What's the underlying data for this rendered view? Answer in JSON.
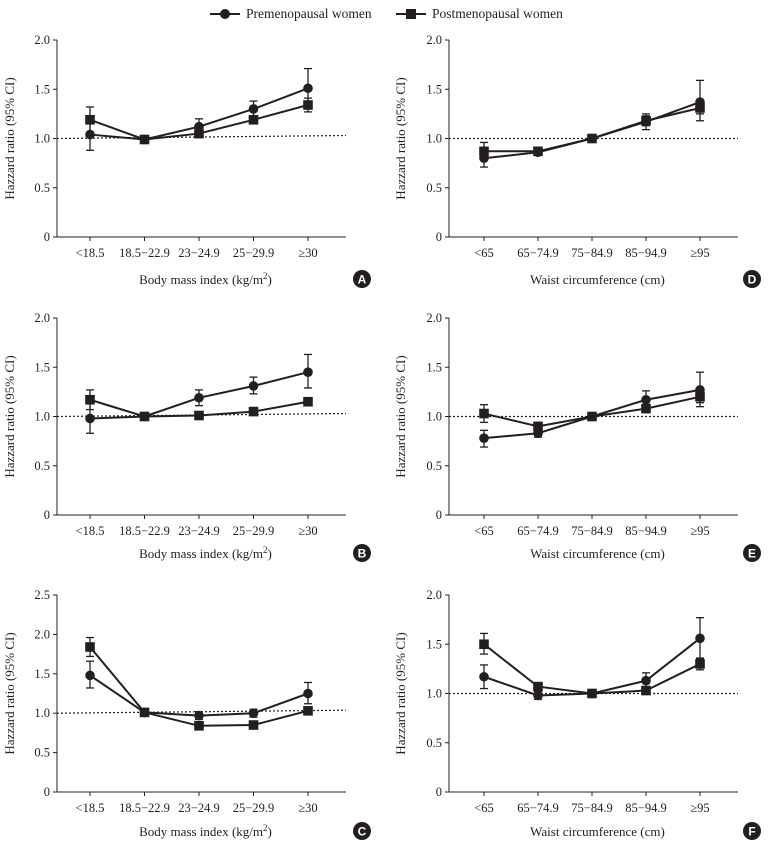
{
  "legend": {
    "premenopausal": "Premenopausal women",
    "postmenopausal": "Postmenopausal women"
  },
  "chart_data": [
    {
      "panel": "A",
      "type": "line",
      "xlabel_main": "Body mass index (kg/m",
      "xlabel_sup": "2",
      "xlabel_end": ")",
      "ylabel": "Hazzard ratio (95% CI)",
      "categories": [
        "<18.5",
        "18.5−22.9",
        "23−24.9",
        "25−29.9",
        "≥30"
      ],
      "ylim": [
        0,
        2.0
      ],
      "yticks": [
        "0",
        "0.5",
        "1.0",
        "1.5",
        "2.0"
      ],
      "reference_line": 1.0,
      "series": [
        {
          "name": "Premenopausal women",
          "marker": "circle",
          "values": [
            1.04,
            0.99,
            1.12,
            1.3,
            1.51
          ],
          "lower": [
            0.88,
            0.99,
            1.04,
            1.22,
            1.31
          ],
          "upper": [
            1.19,
            0.99,
            1.2,
            1.38,
            1.71
          ]
        },
        {
          "name": "Postmenopausal women",
          "marker": "square",
          "values": [
            1.19,
            0.99,
            1.05,
            1.19,
            1.34
          ],
          "lower": [
            1.06,
            0.99,
            1.01,
            1.16,
            1.27
          ],
          "upper": [
            1.32,
            0.99,
            1.09,
            1.22,
            1.41
          ]
        }
      ]
    },
    {
      "panel": "D",
      "type": "line",
      "xlabel_main": "Waist circumference (cm)",
      "xlabel_sup": "",
      "xlabel_end": "",
      "ylabel": "Hazzard ratio (95% CI)",
      "categories": [
        "<65",
        "65−74.9",
        "75−84.9",
        "85−94.9",
        "≥95"
      ],
      "ylim": [
        0,
        2.0
      ],
      "yticks": [
        "0",
        "0.5",
        "1.0",
        "1.5",
        "2.0"
      ],
      "reference_line": 1.0,
      "series": [
        {
          "name": "Premenopausal women",
          "marker": "circle",
          "values": [
            0.8,
            0.86,
            1.0,
            1.17,
            1.37
          ],
          "lower": [
            0.71,
            0.83,
            1.0,
            1.09,
            1.18
          ],
          "upper": [
            0.89,
            0.89,
            1.0,
            1.25,
            1.59
          ]
        },
        {
          "name": "Postmenopausal women",
          "marker": "square",
          "values": [
            0.87,
            0.87,
            1.0,
            1.18,
            1.31
          ],
          "lower": [
            0.8,
            0.85,
            1.0,
            1.13,
            1.25
          ],
          "upper": [
            0.96,
            0.89,
            1.0,
            1.23,
            1.37
          ]
        }
      ]
    },
    {
      "panel": "B",
      "type": "line",
      "xlabel_main": "Body mass index (kg/m",
      "xlabel_sup": "2",
      "xlabel_end": ")",
      "ylabel": "Hazzard ratio (95% CI)",
      "categories": [
        "<18.5",
        "18.5−22.9",
        "23−24.9",
        "25−29.9",
        "≥30"
      ],
      "ylim": [
        0,
        2.0
      ],
      "yticks": [
        "0",
        "0.5",
        "1.0",
        "1.5",
        "2.0"
      ],
      "reference_line": 1.0,
      "series": [
        {
          "name": "Premenopausal women",
          "marker": "circle",
          "values": [
            0.98,
            1.0,
            1.19,
            1.31,
            1.45
          ],
          "lower": [
            0.83,
            1.0,
            1.11,
            1.23,
            1.29
          ],
          "upper": [
            1.14,
            1.0,
            1.27,
            1.4,
            1.63
          ]
        },
        {
          "name": "Postmenopausal women",
          "marker": "square",
          "values": [
            1.17,
            1.0,
            1.01,
            1.05,
            1.15
          ],
          "lower": [
            1.07,
            1.0,
            0.99,
            1.03,
            1.11
          ],
          "upper": [
            1.27,
            1.0,
            1.03,
            1.07,
            1.19
          ]
        }
      ]
    },
    {
      "panel": "E",
      "type": "line",
      "xlabel_main": "Waist circumference (cm)",
      "xlabel_sup": "",
      "xlabel_end": "",
      "ylabel": "Hazzard ratio (95% CI)",
      "categories": [
        "<65",
        "65−74.9",
        "75−84.9",
        "85−94.9",
        "≥95"
      ],
      "ylim": [
        0,
        2.0
      ],
      "yticks": [
        "0",
        "0.5",
        "1.0",
        "1.5",
        "2.0"
      ],
      "reference_line": 1.0,
      "series": [
        {
          "name": "Premenopausal women",
          "marker": "circle",
          "values": [
            0.78,
            0.83,
            1.0,
            1.17,
            1.27
          ],
          "lower": [
            0.69,
            0.79,
            1.0,
            1.09,
            1.1
          ],
          "upper": [
            0.86,
            0.87,
            1.0,
            1.26,
            1.45
          ]
        },
        {
          "name": "Postmenopausal women",
          "marker": "square",
          "values": [
            1.03,
            0.9,
            1.0,
            1.08,
            1.2
          ],
          "lower": [
            0.94,
            0.88,
            1.0,
            1.05,
            1.14
          ],
          "upper": [
            1.12,
            0.92,
            1.0,
            1.11,
            1.27
          ]
        }
      ]
    },
    {
      "panel": "C",
      "type": "line",
      "xlabel_main": "Body mass index (kg/m",
      "xlabel_sup": "2",
      "xlabel_end": ")",
      "ylabel": "Hazzard ratio (95% CI)",
      "categories": [
        "<18.5",
        "18.5−22.9",
        "23−24.9",
        "25−29.9",
        "≥30"
      ],
      "ylim": [
        0,
        2.5
      ],
      "yticks": [
        "0",
        "0.5",
        "1.0",
        "1.5",
        "2.0",
        "2.5"
      ],
      "reference_line": 1.0,
      "series": [
        {
          "name": "Premenopausal women",
          "marker": "circle",
          "values": [
            1.48,
            1.01,
            0.97,
            1.0,
            1.25
          ],
          "lower": [
            1.32,
            1.01,
            0.92,
            0.95,
            1.12
          ],
          "upper": [
            1.66,
            1.01,
            1.02,
            1.05,
            1.39
          ]
        },
        {
          "name": "Postmenopausal women",
          "marker": "square",
          "values": [
            1.84,
            1.01,
            0.84,
            0.85,
            1.03
          ],
          "lower": [
            1.72,
            1.01,
            0.82,
            0.83,
            0.99
          ],
          "upper": [
            1.96,
            1.01,
            0.86,
            0.87,
            1.07
          ]
        }
      ]
    },
    {
      "panel": "F",
      "type": "line",
      "xlabel_main": "Waist circumference (cm)",
      "xlabel_sup": "",
      "xlabel_end": "",
      "ylabel": "Hazzard ratio (95% CI)",
      "categories": [
        "<65",
        "65−74.9",
        "75−84.9",
        "85−94.9",
        "≥95"
      ],
      "ylim": [
        0,
        2.0
      ],
      "yticks": [
        "0",
        "0.5",
        "1.0",
        "1.5",
        "2.0"
      ],
      "reference_line": 1.0,
      "series": [
        {
          "name": "Premenopausal women",
          "marker": "circle",
          "values": [
            1.17,
            0.98,
            1.0,
            1.13,
            1.56
          ],
          "lower": [
            1.05,
            0.94,
            1.0,
            1.05,
            1.35
          ],
          "upper": [
            1.29,
            1.02,
            1.0,
            1.21,
            1.77
          ]
        },
        {
          "name": "Postmenopausal women",
          "marker": "square",
          "values": [
            1.5,
            1.07,
            1.0,
            1.03,
            1.3
          ],
          "lower": [
            1.4,
            1.05,
            1.0,
            1.01,
            1.24
          ],
          "upper": [
            1.61,
            1.09,
            1.0,
            1.05,
            1.36
          ]
        }
      ]
    }
  ]
}
